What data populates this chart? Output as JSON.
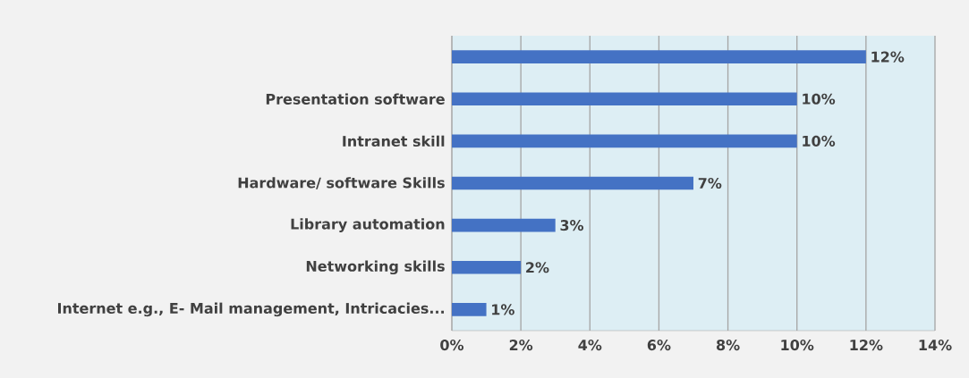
{
  "chart_data": {
    "type": "bar",
    "orientation": "horizontal",
    "categories": [
      null,
      "Presentation software",
      "Intranet skill",
      "Hardware/ software Skills",
      "Library automation",
      "Networking skills",
      "Internet e.g., E- Mail management, Intricacies..."
    ],
    "values": [
      12,
      10,
      10,
      7,
      3,
      2,
      1
    ],
    "value_labels": [
      "12%",
      "10%",
      "10%",
      "7%",
      "3%",
      "2%",
      "1%"
    ],
    "color": "#4472c4",
    "xlim": [
      0,
      14
    ],
    "xticks": [
      {
        "value": 0,
        "label": "0%"
      },
      {
        "value": 2,
        "label": "2%"
      },
      {
        "value": 4,
        "label": "4%"
      },
      {
        "value": 6,
        "label": "6%"
      },
      {
        "value": 8,
        "label": "8%"
      },
      {
        "value": 10,
        "label": "10%"
      },
      {
        "value": 12,
        "label": "12%"
      },
      {
        "value": 14,
        "label": "14%"
      }
    ],
    "grid": "x"
  }
}
